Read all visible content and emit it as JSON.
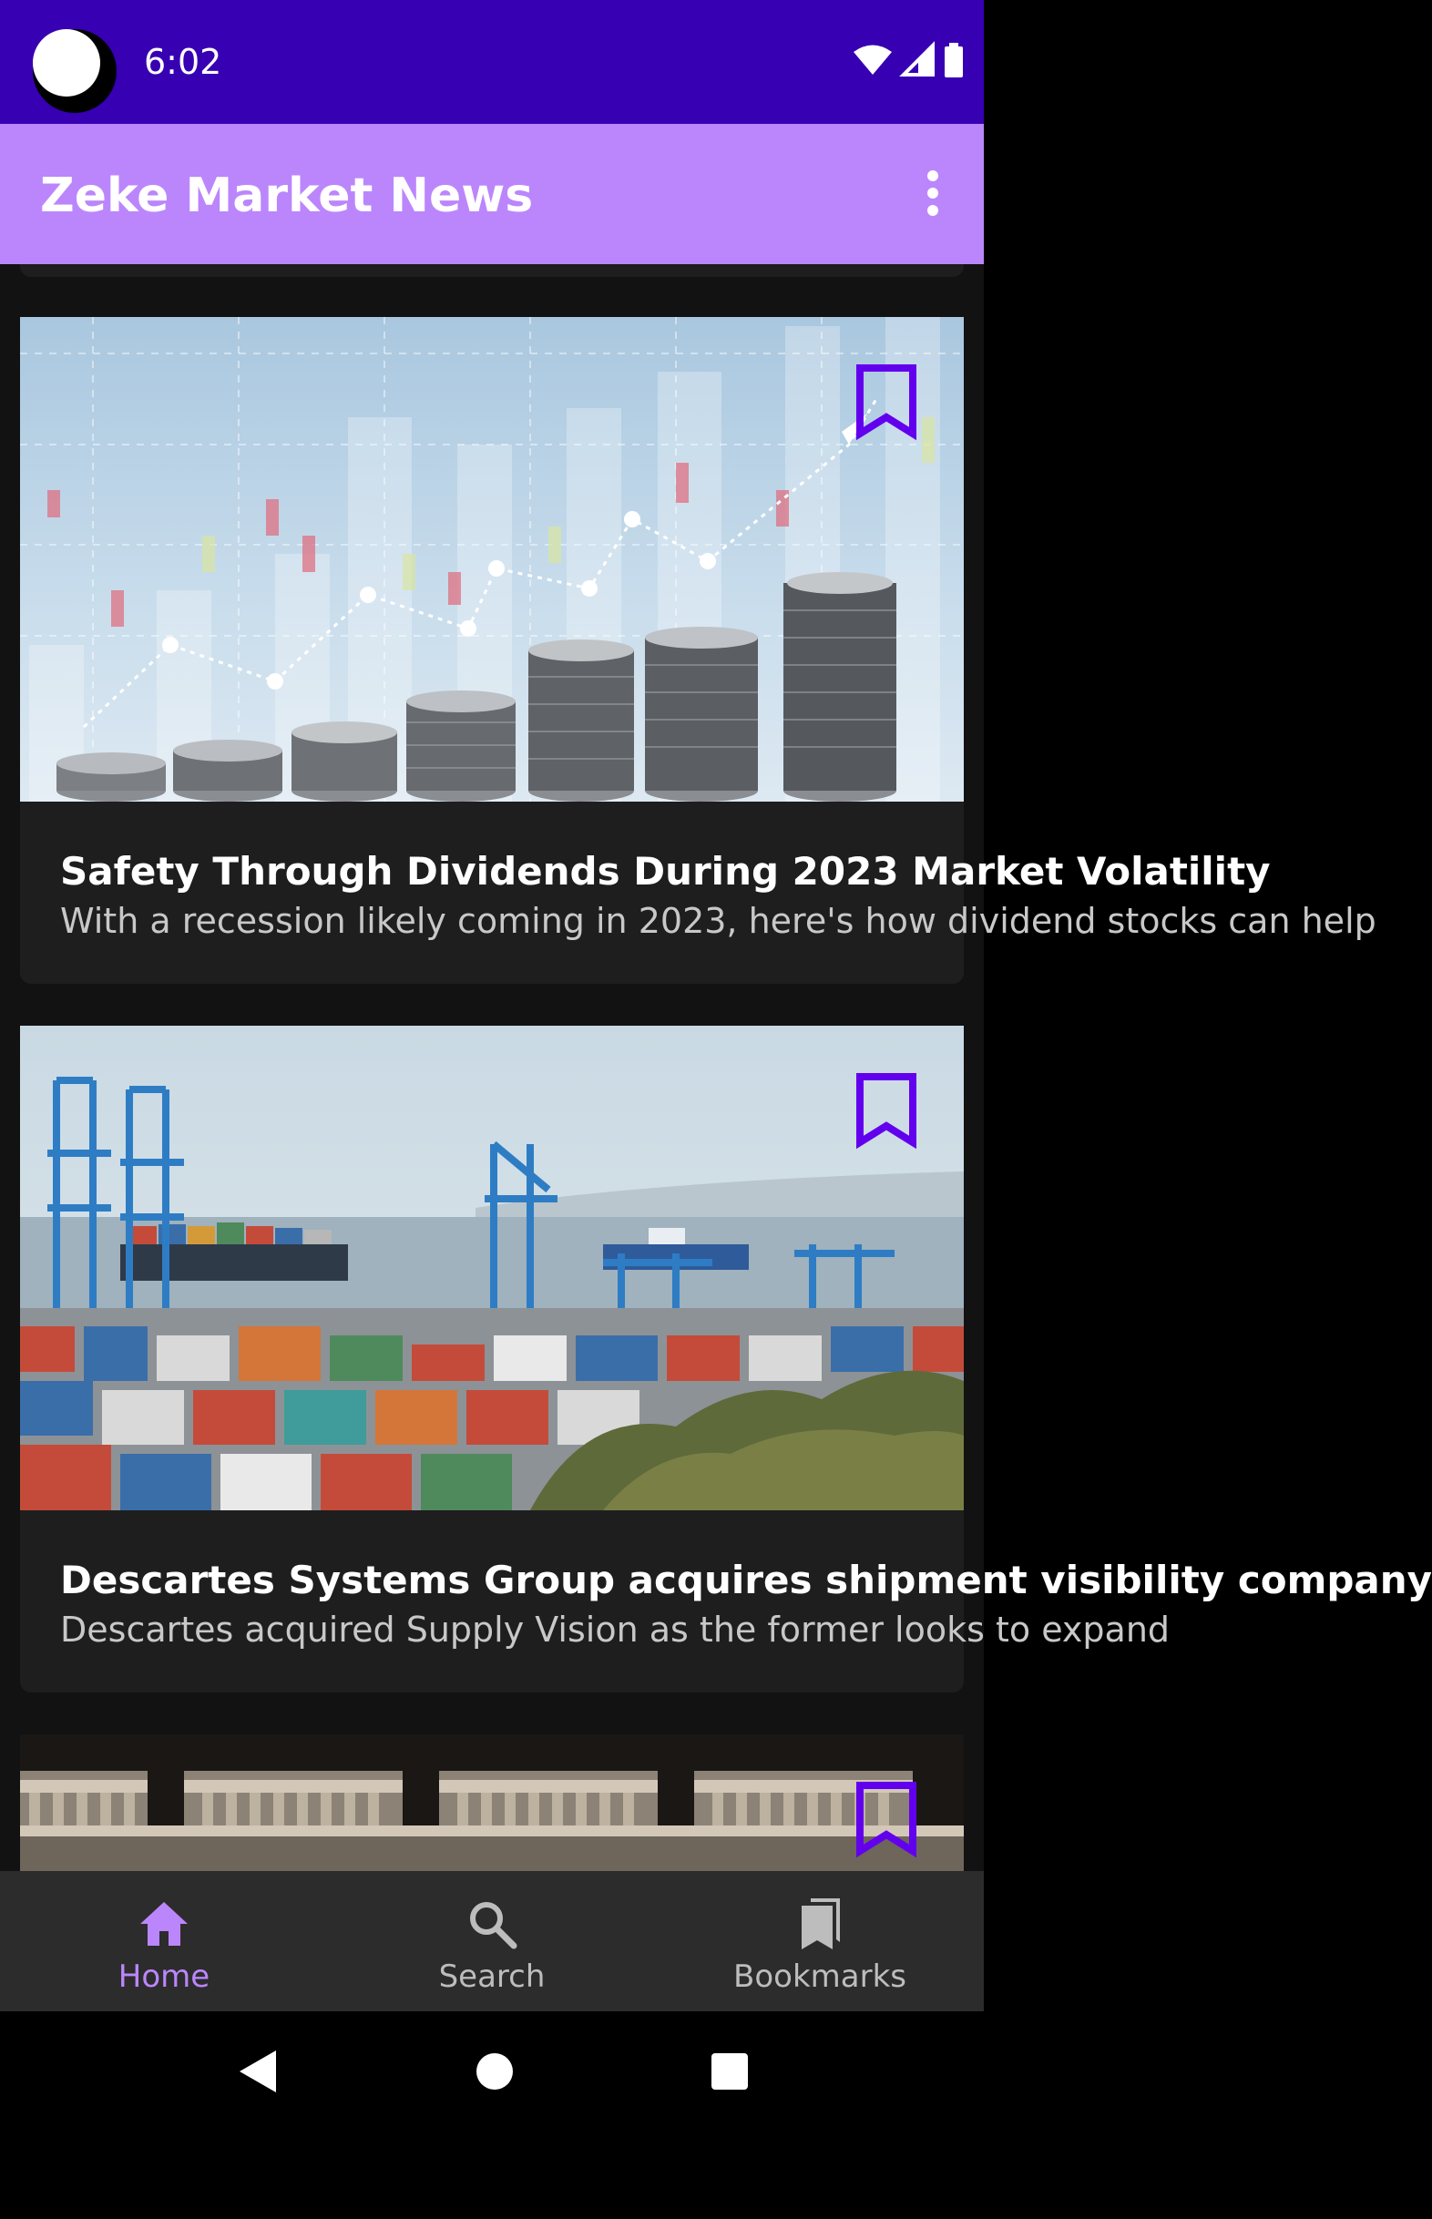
{
  "status_bar": {
    "time": "6:02"
  },
  "app_bar": {
    "title": "Zeke Market News"
  },
  "articles": [
    {
      "title": "Safety Through Dividends During 2023 Market Volatility",
      "description": "With a recession likely coming in 2023, here's how dividend stocks can help",
      "bookmark_icon": "bookmark-outline-icon"
    },
    {
      "title": "Descartes Systems Group acquires shipment visibility company",
      "description": "Descartes acquired Supply Vision as the former looks to expand",
      "bookmark_icon": "bookmark-outline-icon"
    },
    {
      "title": "",
      "description": "",
      "bookmark_icon": "bookmark-outline-icon"
    }
  ],
  "bottom_nav": {
    "items": [
      {
        "label": "Home",
        "icon": "home-icon",
        "active": true
      },
      {
        "label": "Search",
        "icon": "search-icon",
        "active": false
      },
      {
        "label": "Bookmarks",
        "icon": "bookmarks-icon",
        "active": false
      }
    ]
  },
  "colors": {
    "status_bar": "#3700B3",
    "app_bar": "#BB86FC",
    "background": "#121212",
    "card": "#1E1E1E",
    "bookmark": "#6200EE",
    "nav_active": "#BB86FC"
  }
}
